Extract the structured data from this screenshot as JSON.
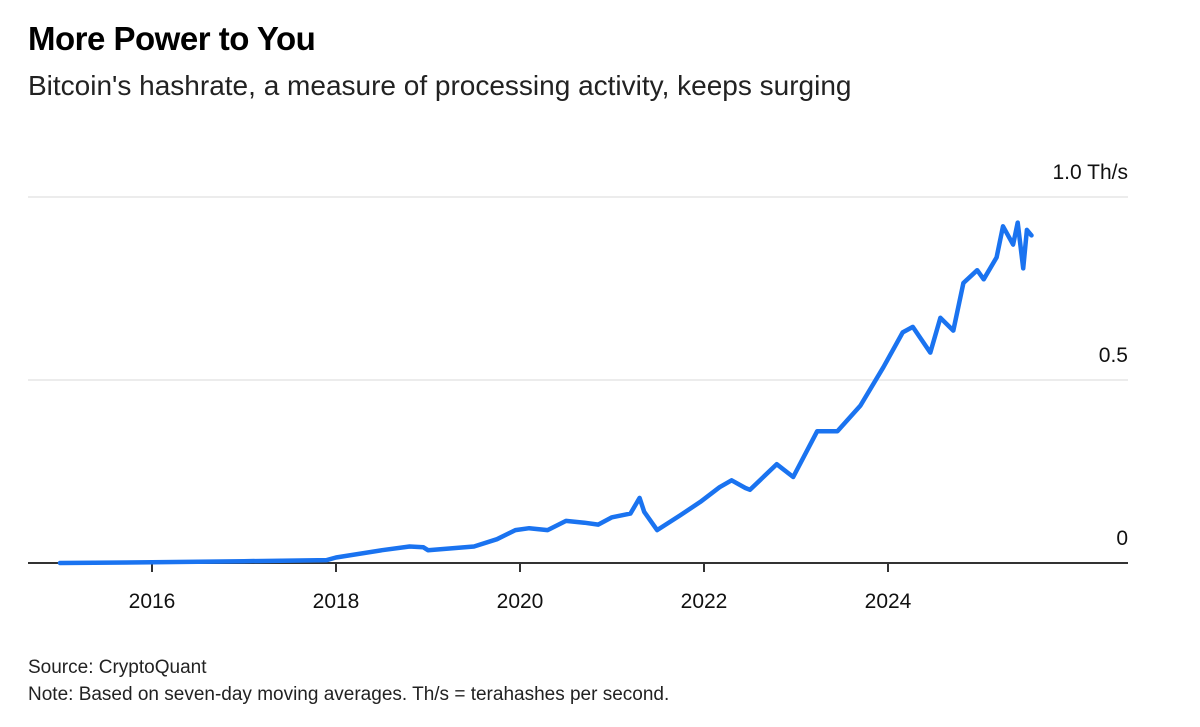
{
  "header": {
    "title": "More Power to You",
    "subtitle": "Bitcoin's hashrate, a measure of processing activity, keeps surging"
  },
  "footer": {
    "source": "Source: CryptoQuant",
    "note": "Note: Based on seven-day moving averages. Th/s = terahashes per second."
  },
  "chart_data": {
    "type": "line",
    "title": "More Power to You",
    "subtitle": "Bitcoin's hashrate, a measure of processing activity, keeps surging",
    "xlabel": "",
    "ylabel": "",
    "xlim": [
      2014.6,
      2026.5
    ],
    "ylim": [
      0,
      1.0
    ],
    "x_ticks": [
      2016,
      2018,
      2020,
      2022,
      2024
    ],
    "x_tick_labels": [
      "2016",
      "2018",
      "2020",
      "2022",
      "2024"
    ],
    "y_ticks": [
      0,
      0.5,
      1.0
    ],
    "y_tick_labels": [
      "0",
      "0.5",
      "1.0 Th/s"
    ],
    "y_axis_side": "right",
    "grid": true,
    "legend": "none",
    "line_color": "#1a73f0",
    "series": [
      {
        "x": [
          2015.0,
          2016.0,
          2017.0,
          2017.9,
          2018.0,
          2018.5,
          2018.8,
          2018.95,
          2019.0,
          2019.5,
          2019.75,
          2019.95,
          2020.1,
          2020.3,
          2020.5,
          2020.7,
          2020.85,
          2021.0,
          2021.2,
          2021.3,
          2021.35,
          2021.49,
          2021.74,
          2021.96,
          2022.17,
          2022.3,
          2022.45,
          2022.5,
          2022.79,
          2022.97,
          2023.23,
          2023.45,
          2023.7,
          2023.95,
          2024.16,
          2024.27,
          2024.46,
          2024.57,
          2024.71,
          2024.82,
          2024.97,
          2025.04,
          2025.18,
          2025.25,
          2025.36,
          2025.41,
          2025.47,
          2025.51,
          2025.56
        ],
        "values": [
          0.0,
          0.002,
          0.005,
          0.008,
          0.015,
          0.035,
          0.045,
          0.043,
          0.035,
          0.045,
          0.065,
          0.09,
          0.095,
          0.09,
          0.115,
          0.11,
          0.105,
          0.125,
          0.135,
          0.178,
          0.14,
          0.09,
          0.13,
          0.167,
          0.207,
          0.226,
          0.205,
          0.2,
          0.27,
          0.235,
          0.36,
          0.36,
          0.43,
          0.535,
          0.63,
          0.645,
          0.575,
          0.67,
          0.635,
          0.765,
          0.8,
          0.775,
          0.835,
          0.92,
          0.87,
          0.93,
          0.805,
          0.91,
          0.895
        ]
      }
    ]
  }
}
